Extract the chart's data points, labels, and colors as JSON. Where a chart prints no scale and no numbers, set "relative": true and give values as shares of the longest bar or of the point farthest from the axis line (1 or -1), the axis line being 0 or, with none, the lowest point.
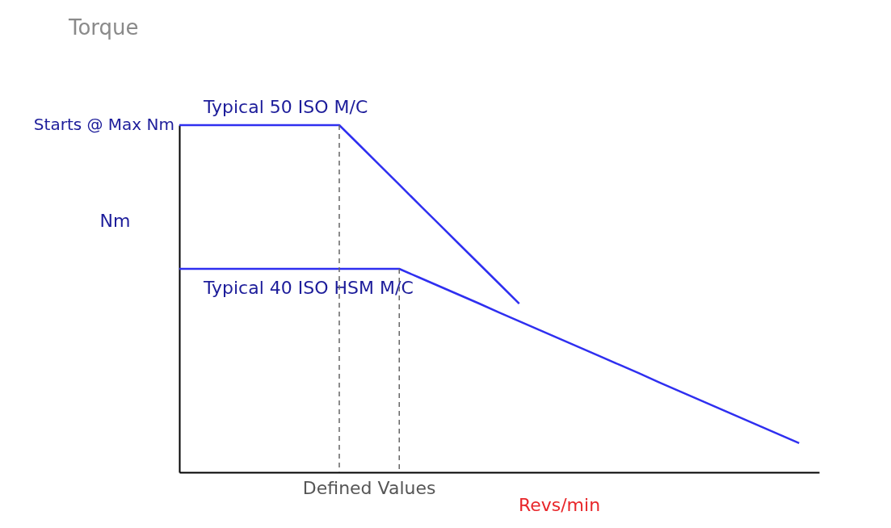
{
  "chart_data": {
    "type": "line",
    "title": "Torque",
    "xlabel": "Revs/min",
    "ylabel": "Nm",
    "relative": true,
    "legend": false,
    "grid": false,
    "marker": "none",
    "line_style": "solid",
    "categories": [
      null,
      null,
      null,
      null,
      null,
      null,
      null,
      null,
      null,
      null,
      null,
      null,
      null,
      null,
      null,
      null,
      null,
      null,
      null,
      null,
      null,
      null,
      null,
      null,
      null,
      null,
      null,
      null,
      null,
      null,
      null,
      null,
      null
    ],
    "series": [
      {
        "name": "Typical 50 ISO M/C",
        "color": "#2f2ff0",
        "values": [
          1,
          1,
          1,
          1,
          1,
          1,
          1,
          1,
          1,
          0.943,
          0.886,
          0.829,
          0.771,
          0.714,
          0.657,
          0.6,
          0.543,
          0.486,
          null,
          null,
          null,
          null,
          null,
          null,
          null,
          null,
          null,
          null,
          null,
          null,
          null,
          null,
          null
        ]
      },
      {
        "name": "Typical 40 ISO HSM M/C",
        "color": "#2f2ff0",
        "values": [
          0.586,
          0.586,
          0.586,
          0.586,
          0.586,
          0.586,
          0.586,
          0.586,
          0.586,
          0.586,
          0.586,
          0.586,
          0.561,
          0.536,
          0.511,
          0.486,
          0.46,
          0.435,
          0.41,
          0.385,
          0.36,
          0.335,
          0.31,
          0.285,
          0.259,
          0.234,
          0.209,
          0.184,
          0.159,
          0.134,
          0.109,
          0.084,
          null
        ]
      }
    ],
    "annotations": [
      "Starts @ Max Nm",
      "Defined Values"
    ]
  }
}
